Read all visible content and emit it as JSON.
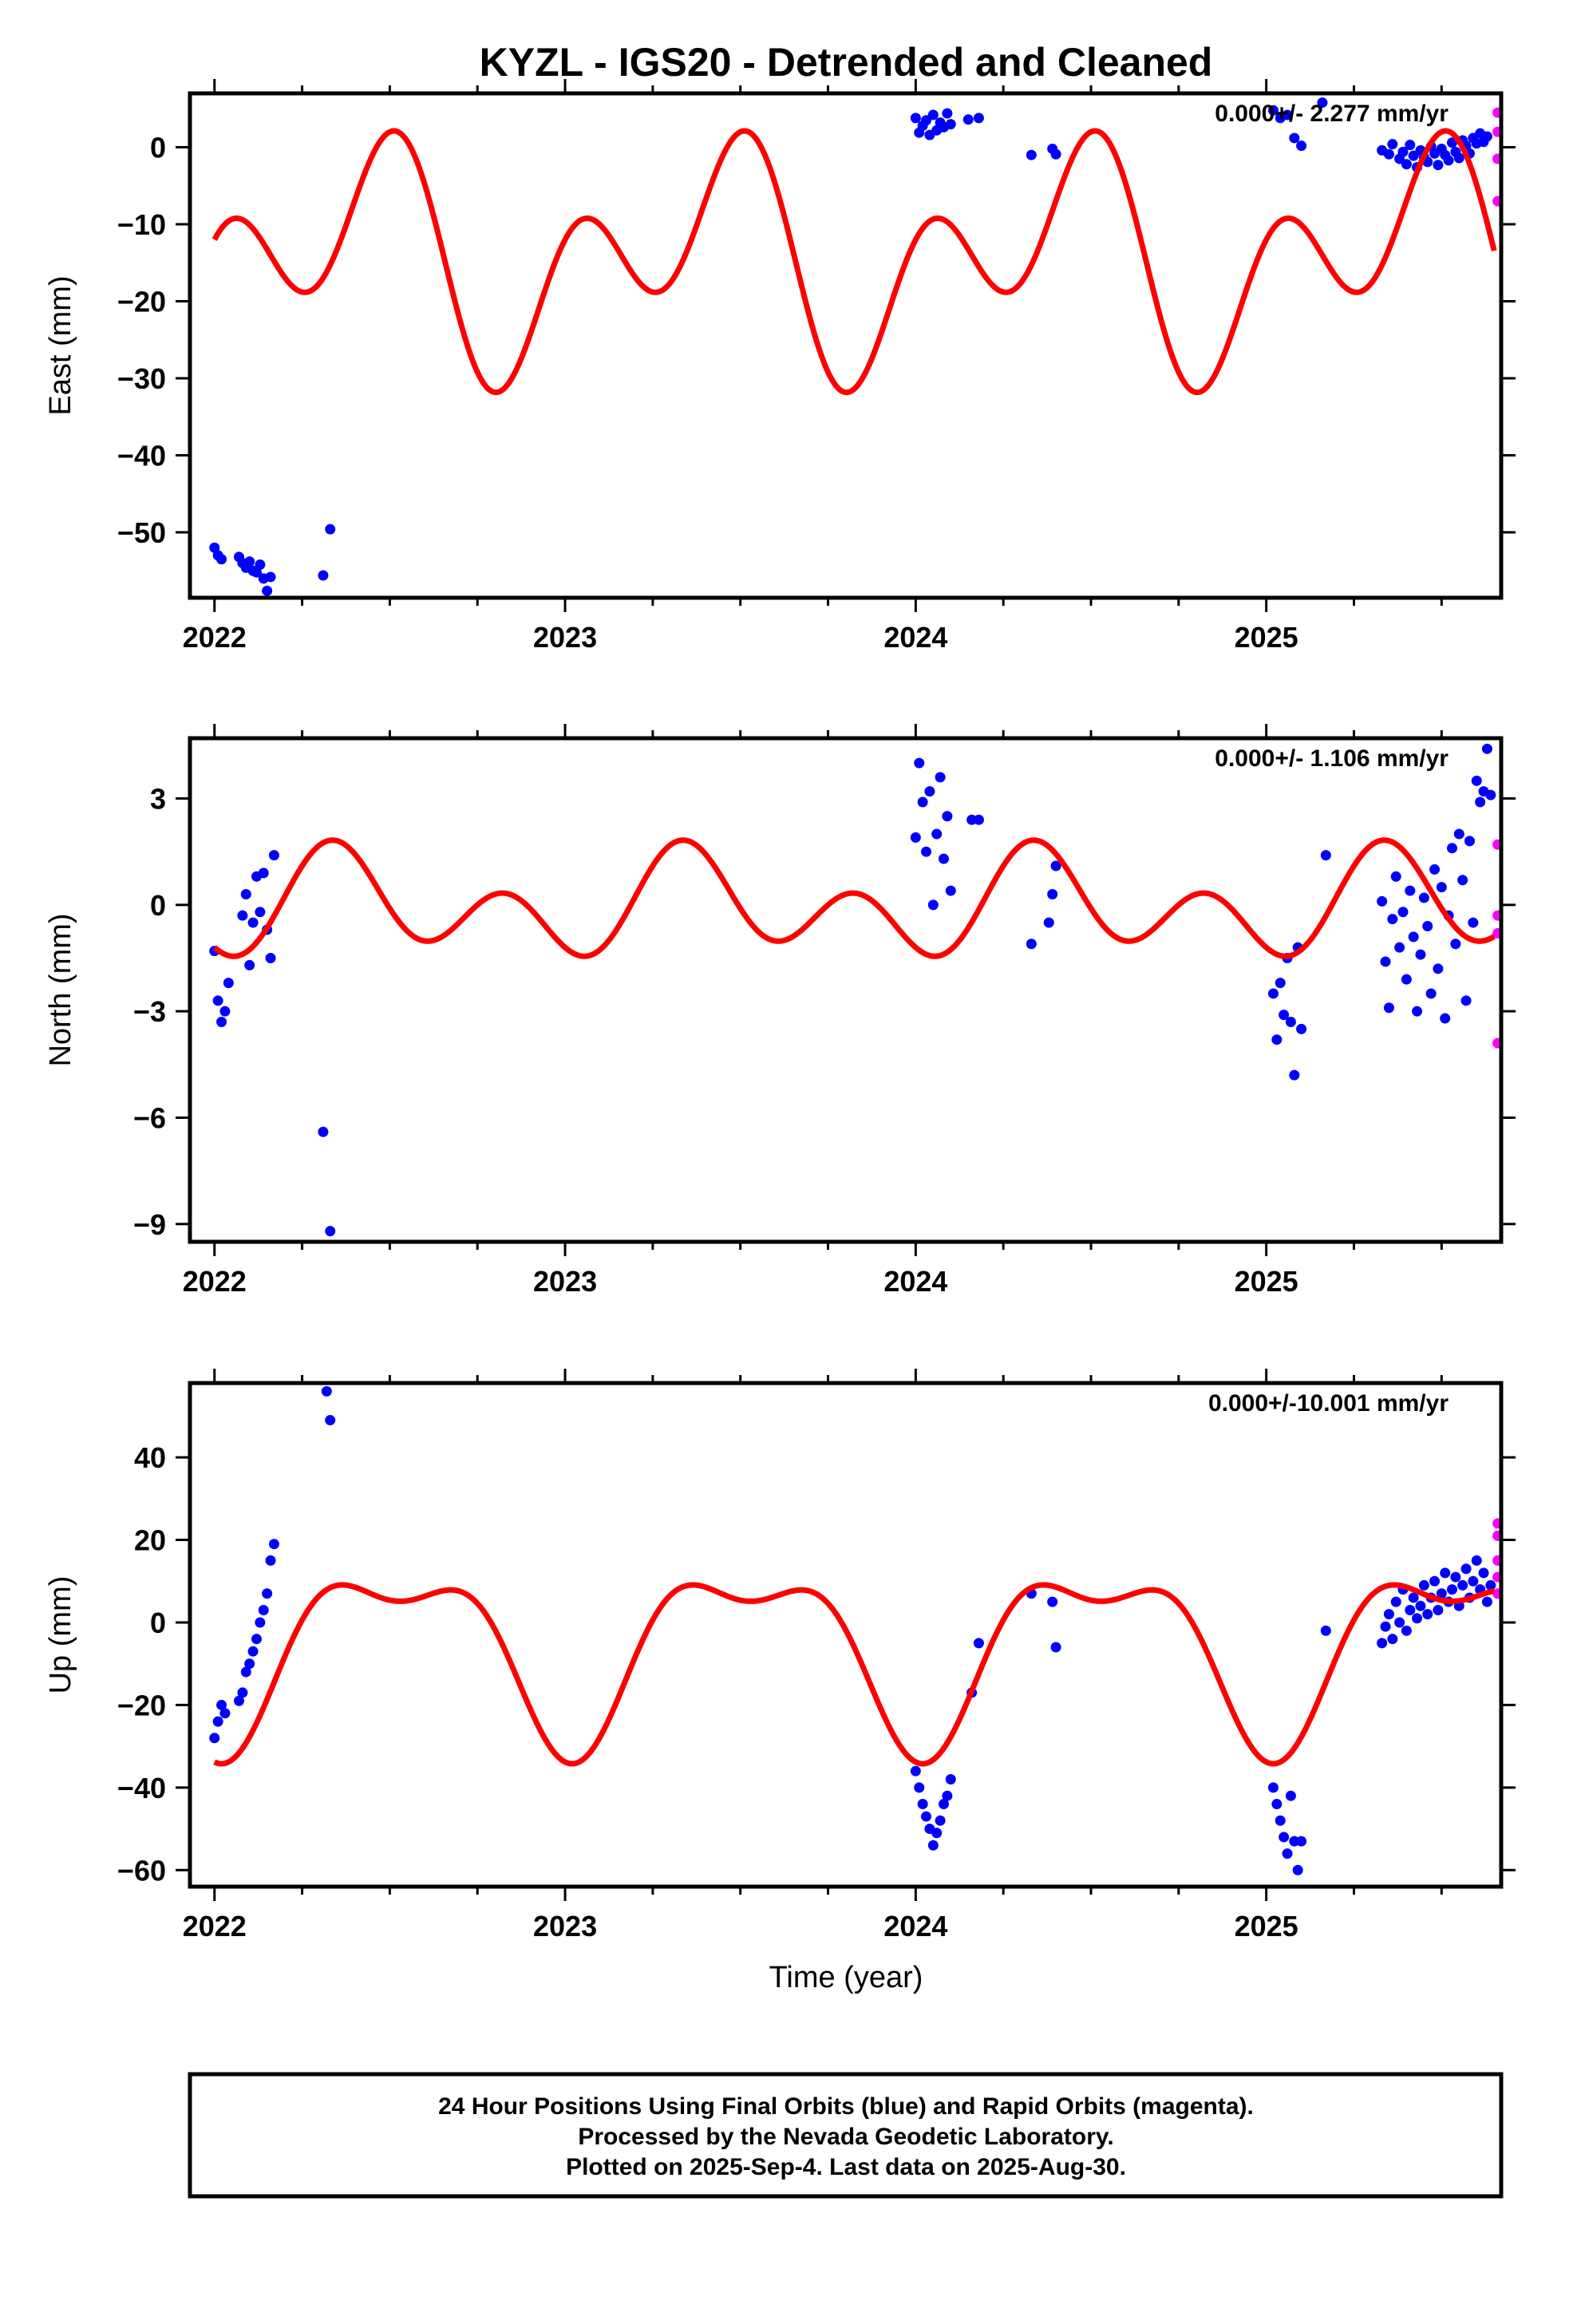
{
  "title": "KYZL - IGS20 - Detrended and Cleaned",
  "xlabel": "Time (year)",
  "colors": {
    "final": "#0000ff",
    "rapid": "#ff00ff",
    "model": "#ff0000",
    "frame": "#000000"
  },
  "footer": {
    "lines": [
      "24 Hour Positions Using Final Orbits (blue) and Rapid Orbits (magenta).",
      "Processed by the Nevada Geodetic Laboratory.",
      "Plotted on 2025-Sep-4. Last data on 2025-Aug-30."
    ]
  },
  "chart_data": [
    {
      "type": "scatter",
      "component": "east",
      "ylabel": "East (mm)",
      "rate": "0.000+/- 2.277 mm/yr",
      "xlim": [
        2021.93,
        2025.67
      ],
      "ylim": [
        -58.5,
        7
      ],
      "yticks": [
        0,
        -10,
        -20,
        -30,
        -40,
        -50
      ],
      "xticks": [
        2022,
        2023,
        2024,
        2025
      ],
      "model": {
        "offset": -14.5,
        "annual_cos": -7.0,
        "annual_sin": 5.2,
        "semi_cos": 9.5,
        "semi_sin": 4.3
      },
      "final": [
        [
          2022.0,
          -52.0
        ],
        [
          2022.01,
          -53.0
        ],
        [
          2022.02,
          -53.5
        ],
        [
          2022.07,
          -53.2
        ],
        [
          2022.08,
          -54.0
        ],
        [
          2022.09,
          -54.6
        ],
        [
          2022.1,
          -53.8
        ],
        [
          2022.11,
          -55.0
        ],
        [
          2022.12,
          -55.2
        ],
        [
          2022.13,
          -54.2
        ],
        [
          2022.14,
          -56.0
        ],
        [
          2022.15,
          -57.6
        ],
        [
          2022.16,
          -55.8
        ],
        [
          2022.31,
          -55.6
        ],
        [
          2022.33,
          -49.6
        ],
        [
          2024.0,
          3.8
        ],
        [
          2024.01,
          1.9
        ],
        [
          2024.02,
          2.8
        ],
        [
          2024.03,
          3.5
        ],
        [
          2024.04,
          1.6
        ],
        [
          2024.05,
          4.2
        ],
        [
          2024.06,
          2.2
        ],
        [
          2024.07,
          3.2
        ],
        [
          2024.08,
          2.6
        ],
        [
          2024.09,
          4.4
        ],
        [
          2024.1,
          3.0
        ],
        [
          2024.15,
          3.6
        ],
        [
          2024.18,
          3.8
        ],
        [
          2024.33,
          -1.0
        ],
        [
          2024.39,
          -0.2
        ],
        [
          2024.4,
          -0.9
        ],
        [
          2025.02,
          4.8
        ],
        [
          2025.04,
          3.8
        ],
        [
          2025.06,
          4.2
        ],
        [
          2025.08,
          1.2
        ],
        [
          2025.1,
          0.2
        ],
        [
          2025.16,
          5.8
        ],
        [
          2025.33,
          -0.4
        ],
        [
          2025.35,
          -0.9
        ],
        [
          2025.36,
          0.4
        ],
        [
          2025.38,
          -1.5
        ],
        [
          2025.39,
          -0.6
        ],
        [
          2025.4,
          -2.2
        ],
        [
          2025.41,
          0.3
        ],
        [
          2025.42,
          -1.1
        ],
        [
          2025.43,
          -2.6
        ],
        [
          2025.44,
          -0.4
        ],
        [
          2025.45,
          -1.3
        ],
        [
          2025.46,
          -1.9
        ],
        [
          2025.47,
          0.1
        ],
        [
          2025.48,
          -0.8
        ],
        [
          2025.49,
          -2.3
        ],
        [
          2025.5,
          -0.2
        ],
        [
          2025.51,
          -1.0
        ],
        [
          2025.52,
          -1.7
        ],
        [
          2025.53,
          0.6
        ],
        [
          2025.54,
          -0.6
        ],
        [
          2025.55,
          -1.4
        ],
        [
          2025.56,
          0.9
        ],
        [
          2025.57,
          0.2
        ],
        [
          2025.58,
          -0.8
        ],
        [
          2025.59,
          1.2
        ],
        [
          2025.6,
          0.5
        ],
        [
          2025.61,
          1.8
        ],
        [
          2025.62,
          0.7
        ],
        [
          2025.63,
          1.4
        ]
      ],
      "rapid": [
        [
          2025.66,
          4.5
        ],
        [
          2025.66,
          2.0
        ],
        [
          2025.66,
          -1.5
        ],
        [
          2025.66,
          -7.0
        ]
      ]
    },
    {
      "type": "scatter",
      "component": "north",
      "ylabel": "North (mm)",
      "rate": "0.000+/- 1.106 mm/yr",
      "xlim": [
        2021.93,
        2025.67
      ],
      "ylim": [
        -9.5,
        4.7
      ],
      "yticks": [
        3,
        0,
        -3,
        -6,
        -9
      ],
      "xticks": [
        2022,
        2023,
        2024,
        2025
      ],
      "model": {
        "offset": -0.05,
        "annual_cos": -0.55,
        "annual_sin": 0.55,
        "semi_cos": -0.6,
        "semi_sin": -0.95
      },
      "final": [
        [
          2022.0,
          -1.3
        ],
        [
          2022.01,
          -2.7
        ],
        [
          2022.02,
          -3.3
        ],
        [
          2022.03,
          -3.0
        ],
        [
          2022.04,
          -2.2
        ],
        [
          2022.08,
          -0.3
        ],
        [
          2022.09,
          0.3
        ],
        [
          2022.1,
          -1.7
        ],
        [
          2022.11,
          -0.5
        ],
        [
          2022.12,
          0.8
        ],
        [
          2022.13,
          -0.2
        ],
        [
          2022.14,
          0.9
        ],
        [
          2022.15,
          -0.7
        ],
        [
          2022.16,
          -1.5
        ],
        [
          2022.17,
          1.4
        ],
        [
          2022.31,
          -6.4
        ],
        [
          2022.33,
          -9.2
        ],
        [
          2024.0,
          1.9
        ],
        [
          2024.01,
          4.0
        ],
        [
          2024.02,
          2.9
        ],
        [
          2024.03,
          1.5
        ],
        [
          2024.04,
          3.2
        ],
        [
          2024.05,
          0.0
        ],
        [
          2024.06,
          2.0
        ],
        [
          2024.07,
          3.6
        ],
        [
          2024.08,
          1.3
        ],
        [
          2024.09,
          2.5
        ],
        [
          2024.1,
          0.4
        ],
        [
          2024.16,
          2.4
        ],
        [
          2024.18,
          2.4
        ],
        [
          2024.33,
          -1.1
        ],
        [
          2024.38,
          -0.5
        ],
        [
          2024.39,
          0.3
        ],
        [
          2024.4,
          1.1
        ],
        [
          2025.02,
          -2.5
        ],
        [
          2025.03,
          -3.8
        ],
        [
          2025.04,
          -2.2
        ],
        [
          2025.05,
          -3.1
        ],
        [
          2025.06,
          -1.5
        ],
        [
          2025.07,
          -3.3
        ],
        [
          2025.08,
          -4.8
        ],
        [
          2025.09,
          -1.2
        ],
        [
          2025.1,
          -3.5
        ],
        [
          2025.17,
          1.4
        ],
        [
          2025.33,
          0.1
        ],
        [
          2025.34,
          -1.6
        ],
        [
          2025.35,
          -2.9
        ],
        [
          2025.36,
          -0.4
        ],
        [
          2025.37,
          0.8
        ],
        [
          2025.38,
          -1.2
        ],
        [
          2025.39,
          -0.2
        ],
        [
          2025.4,
          -2.1
        ],
        [
          2025.41,
          0.4
        ],
        [
          2025.42,
          -0.9
        ],
        [
          2025.43,
          -3.0
        ],
        [
          2025.44,
          -1.4
        ],
        [
          2025.45,
          0.2
        ],
        [
          2025.46,
          -0.6
        ],
        [
          2025.47,
          -2.5
        ],
        [
          2025.48,
          1.0
        ],
        [
          2025.49,
          -1.8
        ],
        [
          2025.5,
          0.5
        ],
        [
          2025.51,
          -3.2
        ],
        [
          2025.52,
          -0.3
        ],
        [
          2025.53,
          1.6
        ],
        [
          2025.54,
          -1.1
        ],
        [
          2025.55,
          2.0
        ],
        [
          2025.56,
          0.7
        ],
        [
          2025.57,
          -2.7
        ],
        [
          2025.58,
          1.8
        ],
        [
          2025.59,
          -0.5
        ],
        [
          2025.6,
          3.5
        ],
        [
          2025.61,
          2.9
        ],
        [
          2025.62,
          3.2
        ],
        [
          2025.63,
          4.4
        ],
        [
          2025.64,
          3.1
        ]
      ],
      "rapid": [
        [
          2025.66,
          1.7
        ],
        [
          2025.66,
          -0.3
        ],
        [
          2025.66,
          -0.8
        ],
        [
          2025.66,
          -3.9
        ]
      ]
    },
    {
      "type": "scatter",
      "component": "up",
      "ylabel": "Up (mm)",
      "rate": "0.000+/-10.001 mm/yr",
      "xlim": [
        2021.93,
        2025.67
      ],
      "ylim": [
        -64,
        58
      ],
      "yticks": [
        40,
        20,
        0,
        -20,
        -40,
        -60
      ],
      "xticks": [
        2022,
        2023,
        2024,
        2025
      ],
      "model": {
        "offset": -5.8,
        "annual_cos": -19.6,
        "annual_sin": -2.0,
        "semi_cos": -8.4,
        "semi_sin": -2.4
      },
      "final": [
        [
          2022.0,
          -28
        ],
        [
          2022.01,
          -24
        ],
        [
          2022.02,
          -20
        ],
        [
          2022.03,
          -22
        ],
        [
          2022.07,
          -19
        ],
        [
          2022.08,
          -17
        ],
        [
          2022.09,
          -12
        ],
        [
          2022.1,
          -10
        ],
        [
          2022.11,
          -7
        ],
        [
          2022.12,
          -4
        ],
        [
          2022.13,
          0
        ],
        [
          2022.14,
          3
        ],
        [
          2022.15,
          7
        ],
        [
          2022.16,
          15
        ],
        [
          2022.17,
          19
        ],
        [
          2022.32,
          56
        ],
        [
          2022.33,
          49
        ],
        [
          2024.0,
          -36
        ],
        [
          2024.01,
          -40
        ],
        [
          2024.02,
          -44
        ],
        [
          2024.03,
          -47
        ],
        [
          2024.04,
          -50
        ],
        [
          2024.05,
          -54
        ],
        [
          2024.06,
          -51
        ],
        [
          2024.07,
          -48
        ],
        [
          2024.08,
          -44
        ],
        [
          2024.09,
          -42
        ],
        [
          2024.1,
          -38
        ],
        [
          2024.16,
          -17
        ],
        [
          2024.18,
          -5
        ],
        [
          2024.33,
          7
        ],
        [
          2024.39,
          5
        ],
        [
          2024.4,
          -6
        ],
        [
          2025.02,
          -40
        ],
        [
          2025.03,
          -44
        ],
        [
          2025.04,
          -48
        ],
        [
          2025.05,
          -52
        ],
        [
          2025.06,
          -56
        ],
        [
          2025.07,
          -42
        ],
        [
          2025.08,
          -53
        ],
        [
          2025.09,
          -60
        ],
        [
          2025.1,
          -53
        ],
        [
          2025.17,
          -2
        ],
        [
          2025.33,
          -5
        ],
        [
          2025.34,
          -1
        ],
        [
          2025.35,
          2
        ],
        [
          2025.36,
          -4
        ],
        [
          2025.37,
          5
        ],
        [
          2025.38,
          0
        ],
        [
          2025.39,
          8
        ],
        [
          2025.4,
          -2
        ],
        [
          2025.41,
          3
        ],
        [
          2025.42,
          6
        ],
        [
          2025.43,
          1
        ],
        [
          2025.44,
          4
        ],
        [
          2025.45,
          9
        ],
        [
          2025.46,
          2
        ],
        [
          2025.47,
          6
        ],
        [
          2025.48,
          10
        ],
        [
          2025.49,
          3
        ],
        [
          2025.5,
          7
        ],
        [
          2025.51,
          12
        ],
        [
          2025.52,
          5
        ],
        [
          2025.53,
          8
        ],
        [
          2025.54,
          11
        ],
        [
          2025.55,
          4
        ],
        [
          2025.56,
          9
        ],
        [
          2025.57,
          13
        ],
        [
          2025.58,
          6
        ],
        [
          2025.59,
          10
        ],
        [
          2025.6,
          15
        ],
        [
          2025.61,
          8
        ],
        [
          2025.62,
          12
        ],
        [
          2025.63,
          5
        ],
        [
          2025.64,
          9
        ]
      ],
      "rapid": [
        [
          2025.66,
          24
        ],
        [
          2025.66,
          21
        ],
        [
          2025.66,
          15
        ],
        [
          2025.66,
          11
        ],
        [
          2025.66,
          7
        ]
      ]
    }
  ]
}
